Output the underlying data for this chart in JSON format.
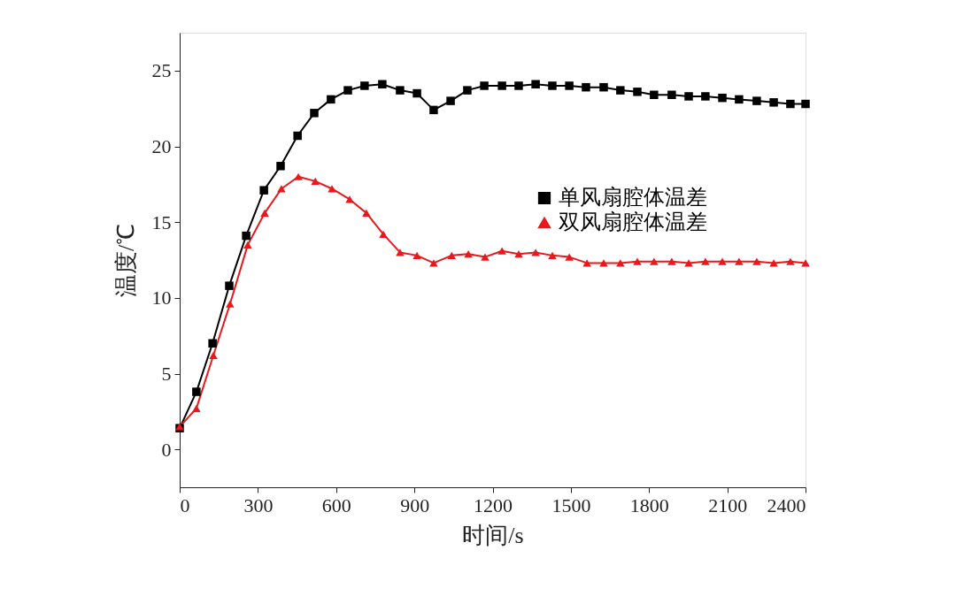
{
  "chart_data": {
    "type": "line",
    "xlabel": "时间/s",
    "ylabel": "温度/℃",
    "xlim": [
      0,
      2400
    ],
    "ylim": [
      -2.5,
      27.5
    ],
    "xticks": [
      0,
      300,
      600,
      900,
      1200,
      1500,
      1800,
      2100,
      2400
    ],
    "yticks": [
      0,
      5,
      10,
      15,
      20,
      25
    ],
    "grid": false,
    "legend": "right",
    "line_style": "solid",
    "series": [
      {
        "name": "单风扇腔体温差",
        "color": "#000000",
        "marker": "square",
        "x": [
          0,
          64,
          126,
          190,
          255,
          323,
          387,
          452,
          516,
          580,
          645,
          709,
          777,
          845,
          910,
          974,
          1039,
          1103,
          1168,
          1236,
          1300,
          1365,
          1429,
          1494,
          1558,
          1626,
          1690,
          1755,
          1819,
          1887,
          1952,
          2016,
          2081,
          2145,
          2213,
          2278,
          2342,
          2400
        ],
        "values": [
          1.4,
          3.8,
          7.0,
          10.8,
          14.1,
          17.1,
          18.7,
          20.7,
          22.2,
          23.1,
          23.7,
          24.0,
          24.1,
          23.7,
          23.5,
          22.4,
          23.0,
          23.7,
          24.0,
          24.0,
          24.0,
          24.1,
          24.0,
          24.0,
          23.9,
          23.9,
          23.7,
          23.6,
          23.4,
          23.4,
          23.3,
          23.3,
          23.2,
          23.1,
          23.0,
          22.9,
          22.8,
          22.8
        ]
      },
      {
        "name": "双风扇腔体温差",
        "color": "#e8191c",
        "marker": "triangle",
        "x": [
          0,
          64,
          129,
          193,
          261,
          326,
          390,
          455,
          520,
          584,
          652,
          716,
          781,
          845,
          910,
          974,
          1043,
          1107,
          1171,
          1236,
          1300,
          1365,
          1429,
          1494,
          1562,
          1626,
          1690,
          1755,
          1819,
          1887,
          1952,
          2016,
          2081,
          2145,
          2213,
          2278,
          2342,
          2400
        ],
        "values": [
          1.5,
          2.7,
          6.2,
          9.6,
          13.5,
          15.6,
          17.2,
          18.0,
          17.7,
          17.2,
          16.5,
          15.6,
          14.2,
          13.0,
          12.8,
          12.3,
          12.8,
          12.9,
          12.7,
          13.1,
          12.9,
          13.0,
          12.8,
          12.7,
          12.3,
          12.3,
          12.3,
          12.4,
          12.4,
          12.4,
          12.3,
          12.4,
          12.4,
          12.4,
          12.4,
          12.3,
          12.4,
          12.3
        ]
      }
    ]
  }
}
